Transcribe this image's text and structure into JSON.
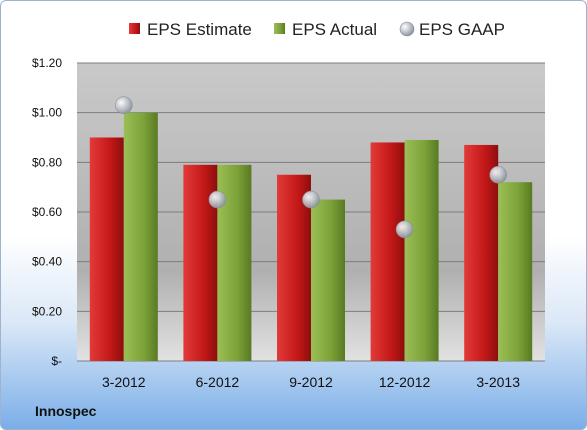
{
  "company": "Innospec",
  "colors": {
    "estimate": "#cc1f1f",
    "actual": "#7fa33a",
    "gaap": "#b9bfc6"
  },
  "chart_data": {
    "type": "bar",
    "categories": [
      "3-2012",
      "6-2012",
      "9-2012",
      "12-2012",
      "3-2013"
    ],
    "series": [
      {
        "name": "EPS Estimate",
        "values": [
          0.9,
          0.79,
          0.75,
          0.88,
          0.87
        ]
      },
      {
        "name": "EPS Actual",
        "values": [
          1.0,
          0.79,
          0.65,
          0.89,
          0.72
        ]
      },
      {
        "name": "EPS GAAP",
        "type": "scatter",
        "values": [
          1.03,
          0.65,
          0.65,
          0.53,
          0.75
        ]
      }
    ],
    "ylim": [
      0,
      1.2
    ],
    "yticks": [
      0,
      0.2,
      0.4,
      0.6,
      0.8,
      1.0,
      1.2
    ],
    "ytick_labels": [
      "$-",
      "$0.20",
      "$0.40",
      "$0.60",
      "$0.80",
      "$1.00",
      "$1.20"
    ],
    "legend_position": "top",
    "grid": true
  }
}
